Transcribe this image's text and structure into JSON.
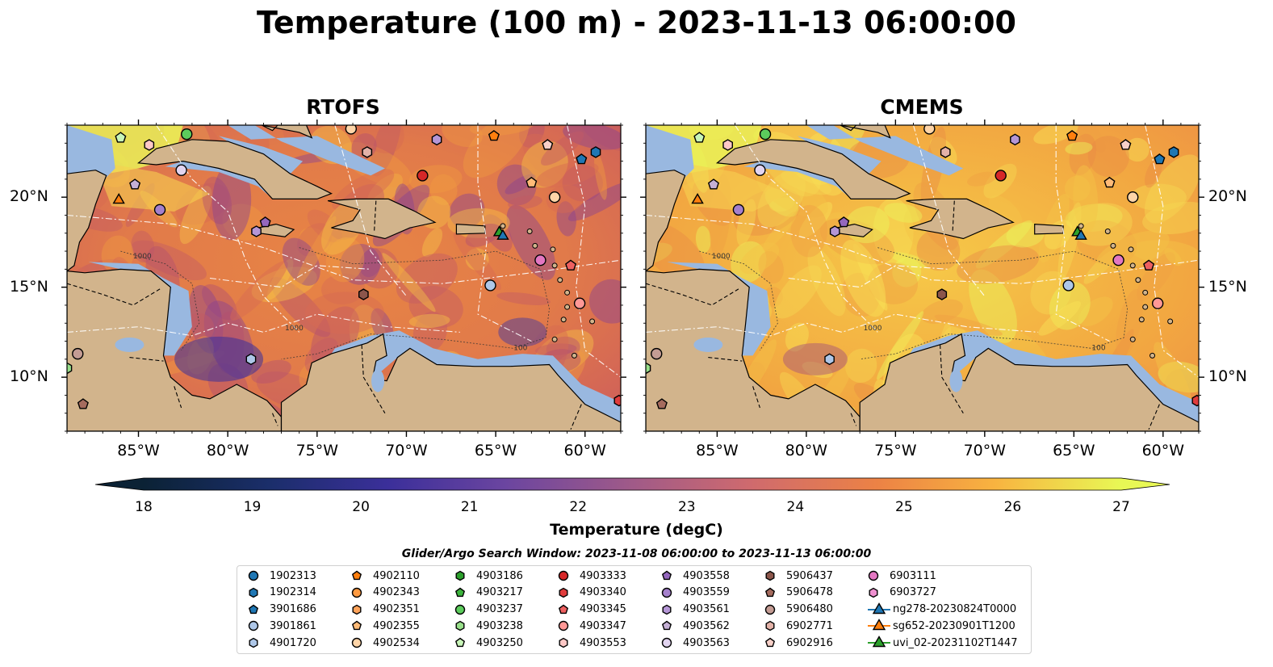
{
  "title": "Temperature (100 m) - 2023-11-13 06:00:00",
  "panels": [
    {
      "title": "RTOFS"
    },
    {
      "title": "CMEMS"
    }
  ],
  "lat_labels": [
    "20°N",
    "15°N",
    "10°N"
  ],
  "lon_labels": [
    "85°W",
    "80°W",
    "75°W",
    "70°W",
    "65°W",
    "60°W"
  ],
  "colorbar": {
    "label": "Temperature (degC)",
    "ticks": [
      "18",
      "19",
      "20",
      "21",
      "22",
      "23",
      "24",
      "25",
      "26",
      "27"
    ],
    "range": [
      18,
      27
    ],
    "extend": "both",
    "colormap": "thermal"
  },
  "map": {
    "lon_range": [
      -89,
      -58
    ],
    "lat_range": [
      7,
      24
    ],
    "land_color": "#d2b48c",
    "shelf_color": "#99b8e0",
    "contour_labels": [
      "100",
      "1000"
    ]
  },
  "search_window": "Glider/Argo Search Window: 2023-11-08 06:00:00 to 2023-11-13 06:00:00",
  "legend": [
    {
      "label": "1902313",
      "shape": "circle",
      "color": "#1f77b4"
    },
    {
      "label": "1902314",
      "shape": "hexagon",
      "color": "#1f77b4"
    },
    {
      "label": "3901686",
      "shape": "pentagon",
      "color": "#1f77b4"
    },
    {
      "label": "3901861",
      "shape": "circle",
      "color": "#aec7e8"
    },
    {
      "label": "4901720",
      "shape": "hexagon",
      "color": "#aec7e8"
    },
    {
      "label": "4902110",
      "shape": "pentagon",
      "color": "#ff7f0e"
    },
    {
      "label": "4902343",
      "shape": "circle",
      "color": "#ff9a40"
    },
    {
      "label": "4902351",
      "shape": "hexagon",
      "color": "#ffa35a"
    },
    {
      "label": "4902355",
      "shape": "pentagon",
      "color": "#ffbb78"
    },
    {
      "label": "4902534",
      "shape": "circle",
      "color": "#ffd5a8"
    },
    {
      "label": "4903186",
      "shape": "hexagon",
      "color": "#2ca02c"
    },
    {
      "label": "4903217",
      "shape": "pentagon",
      "color": "#3cb43c"
    },
    {
      "label": "4903237",
      "shape": "circle",
      "color": "#5ccc5c"
    },
    {
      "label": "4903238",
      "shape": "hexagon",
      "color": "#98df8a"
    },
    {
      "label": "4903250",
      "shape": "pentagon",
      "color": "#c8f5b8"
    },
    {
      "label": "4903333",
      "shape": "circle",
      "color": "#d62728"
    },
    {
      "label": "4903340",
      "shape": "hexagon",
      "color": "#e03c3c"
    },
    {
      "label": "4903345",
      "shape": "pentagon",
      "color": "#ee6060"
    },
    {
      "label": "4903347",
      "shape": "circle",
      "color": "#ff9896"
    },
    {
      "label": "4903553",
      "shape": "hexagon",
      "color": "#ffc8c6"
    },
    {
      "label": "4903558",
      "shape": "pentagon",
      "color": "#9467bd"
    },
    {
      "label": "4903559",
      "shape": "circle",
      "color": "#a580cc"
    },
    {
      "label": "4903561",
      "shape": "hexagon",
      "color": "#b596d6"
    },
    {
      "label": "4903562",
      "shape": "pentagon",
      "color": "#c5b0d5"
    },
    {
      "label": "4903563",
      "shape": "circle",
      "color": "#e2d4f0"
    },
    {
      "label": "5906437",
      "shape": "hexagon",
      "color": "#8c564b"
    },
    {
      "label": "5906478",
      "shape": "pentagon",
      "color": "#a56b5e"
    },
    {
      "label": "5906480",
      "shape": "circle",
      "color": "#c49c94"
    },
    {
      "label": "6902771",
      "shape": "hexagon",
      "color": "#e3b2a8"
    },
    {
      "label": "6902916",
      "shape": "pentagon",
      "color": "#f7d0c8"
    },
    {
      "label": "6903111",
      "shape": "circle",
      "color": "#e377c2"
    },
    {
      "label": "6903727",
      "shape": "hexagon",
      "color": "#ee90d0"
    },
    {
      "label": "ng278-20230824T0000",
      "shape": "triangle-line",
      "color": "#1f77b4"
    },
    {
      "label": "sg652-20230901T1200",
      "shape": "triangle-line",
      "color": "#ff7f0e"
    },
    {
      "label": "uvi_02-20231102T1447",
      "shape": "triangle-line",
      "color": "#2ca02c"
    }
  ],
  "markers": [
    {
      "id": "3901686",
      "lon": -60.2,
      "lat": 22.1
    },
    {
      "id": "1902314",
      "lon": -59.4,
      "lat": 22.5
    },
    {
      "id": "4903250",
      "lon": -86.0,
      "lat": 23.3
    },
    {
      "id": "4902534",
      "lon": -73.1,
      "lat": 23.8
    },
    {
      "id": "4902110",
      "lon": -65.1,
      "lat": 23.4
    },
    {
      "id": "4903237",
      "lon": -82.3,
      "lat": 23.5
    },
    {
      "id": "4903553",
      "lon": -84.4,
      "lat": 22.9
    },
    {
      "id": "4903561",
      "lon": -68.3,
      "lat": 23.2
    },
    {
      "id": "6902916",
      "lon": -62.1,
      "lat": 22.9
    },
    {
      "id": "6902771",
      "lon": -72.2,
      "lat": 22.5
    },
    {
      "id": "4903563",
      "lon": -82.6,
      "lat": 21.5
    },
    {
      "id": "4903333",
      "lon": -69.1,
      "lat": 21.2
    },
    {
      "id": "4903562",
      "lon": -85.2,
      "lat": 20.7
    },
    {
      "id": "4902355",
      "lon": -63.0,
      "lat": 20.8
    },
    {
      "id": "4902534-b",
      "lon": -61.7,
      "lat": 20.0
    },
    {
      "id": "sg652-20230901T1200",
      "lon": -86.1,
      "lat": 19.9
    },
    {
      "id": "4903559",
      "lon": -83.8,
      "lat": 19.3
    },
    {
      "id": "4903558",
      "lon": -77.9,
      "lat": 18.6
    },
    {
      "id": "4903561-b",
      "lon": -78.4,
      "lat": 18.1
    },
    {
      "id": "uvi_02-20231102T1447",
      "lon": -64.8,
      "lat": 18.1
    },
    {
      "id": "ng278-20230824T0000",
      "lon": -64.6,
      "lat": 17.9
    },
    {
      "id": "6903111",
      "lon": -62.5,
      "lat": 16.5
    },
    {
      "id": "4903345",
      "lon": -60.8,
      "lat": 16.2
    },
    {
      "id": "3901861",
      "lon": -65.3,
      "lat": 15.1
    },
    {
      "id": "5906437",
      "lon": -72.4,
      "lat": 14.6
    },
    {
      "id": "4903347",
      "lon": -60.3,
      "lat": 14.1
    },
    {
      "id": "5906480",
      "lon": -88.4,
      "lat": 11.3
    },
    {
      "id": "4901720",
      "lon": -78.7,
      "lat": 11.0
    },
    {
      "id": "5906478",
      "lon": -88.1,
      "lat": 8.5
    },
    {
      "id": "4903340",
      "lon": -58.1,
      "lat": 8.7
    },
    {
      "id": "4903238",
      "lon": -89.0,
      "lat": 10.5
    }
  ]
}
